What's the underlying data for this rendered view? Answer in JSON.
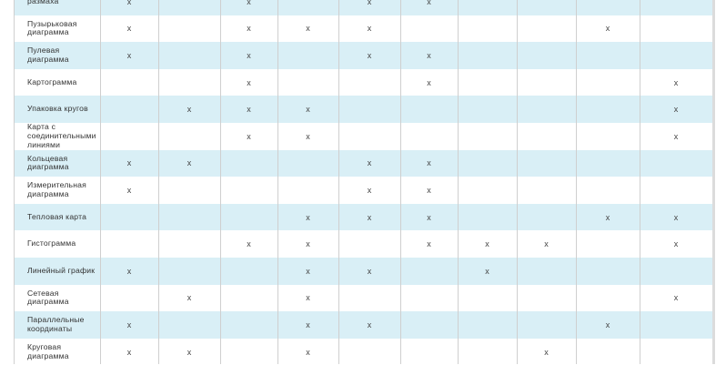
{
  "mark_symbol": "x",
  "colors": {
    "shaded_row": "#d9eff6",
    "grid": "#cfcfcf"
  },
  "rows": [
    {
      "label": "размаха",
      "marks": [
        1,
        3,
        5,
        6
      ]
    },
    {
      "label": "Пузырьковая диаграмма",
      "marks": [
        1,
        3,
        4,
        5,
        9
      ]
    },
    {
      "label": "Пулевая диаграмма",
      "marks": [
        1,
        3,
        5,
        6
      ]
    },
    {
      "label": "Картограмма",
      "marks": [
        3,
        6,
        10
      ]
    },
    {
      "label": "Упаковка кругов",
      "marks": [
        2,
        3,
        4,
        10
      ]
    },
    {
      "label": "Карта с соединительными линиями",
      "marks": [
        3,
        4,
        10
      ]
    },
    {
      "label": "Кольцевая диаграмма",
      "marks": [
        1,
        2,
        5,
        6
      ]
    },
    {
      "label": "Измерительная диаграмма",
      "marks": [
        1,
        5,
        6
      ]
    },
    {
      "label": "Тепловая карта",
      "marks": [
        4,
        5,
        6,
        9,
        10
      ]
    },
    {
      "label": "Гистограмма",
      "marks": [
        3,
        4,
        6,
        7,
        8,
        10
      ]
    },
    {
      "label": "Линейный график",
      "marks": [
        1,
        4,
        5,
        7
      ]
    },
    {
      "label": "Сетевая диаграмма",
      "marks": [
        2,
        4,
        10
      ]
    },
    {
      "label": "Параллельные координаты",
      "marks": [
        1,
        4,
        5,
        9
      ]
    },
    {
      "label": "Круговая диаграмма",
      "marks": [
        1,
        2,
        4,
        8
      ]
    }
  ]
}
